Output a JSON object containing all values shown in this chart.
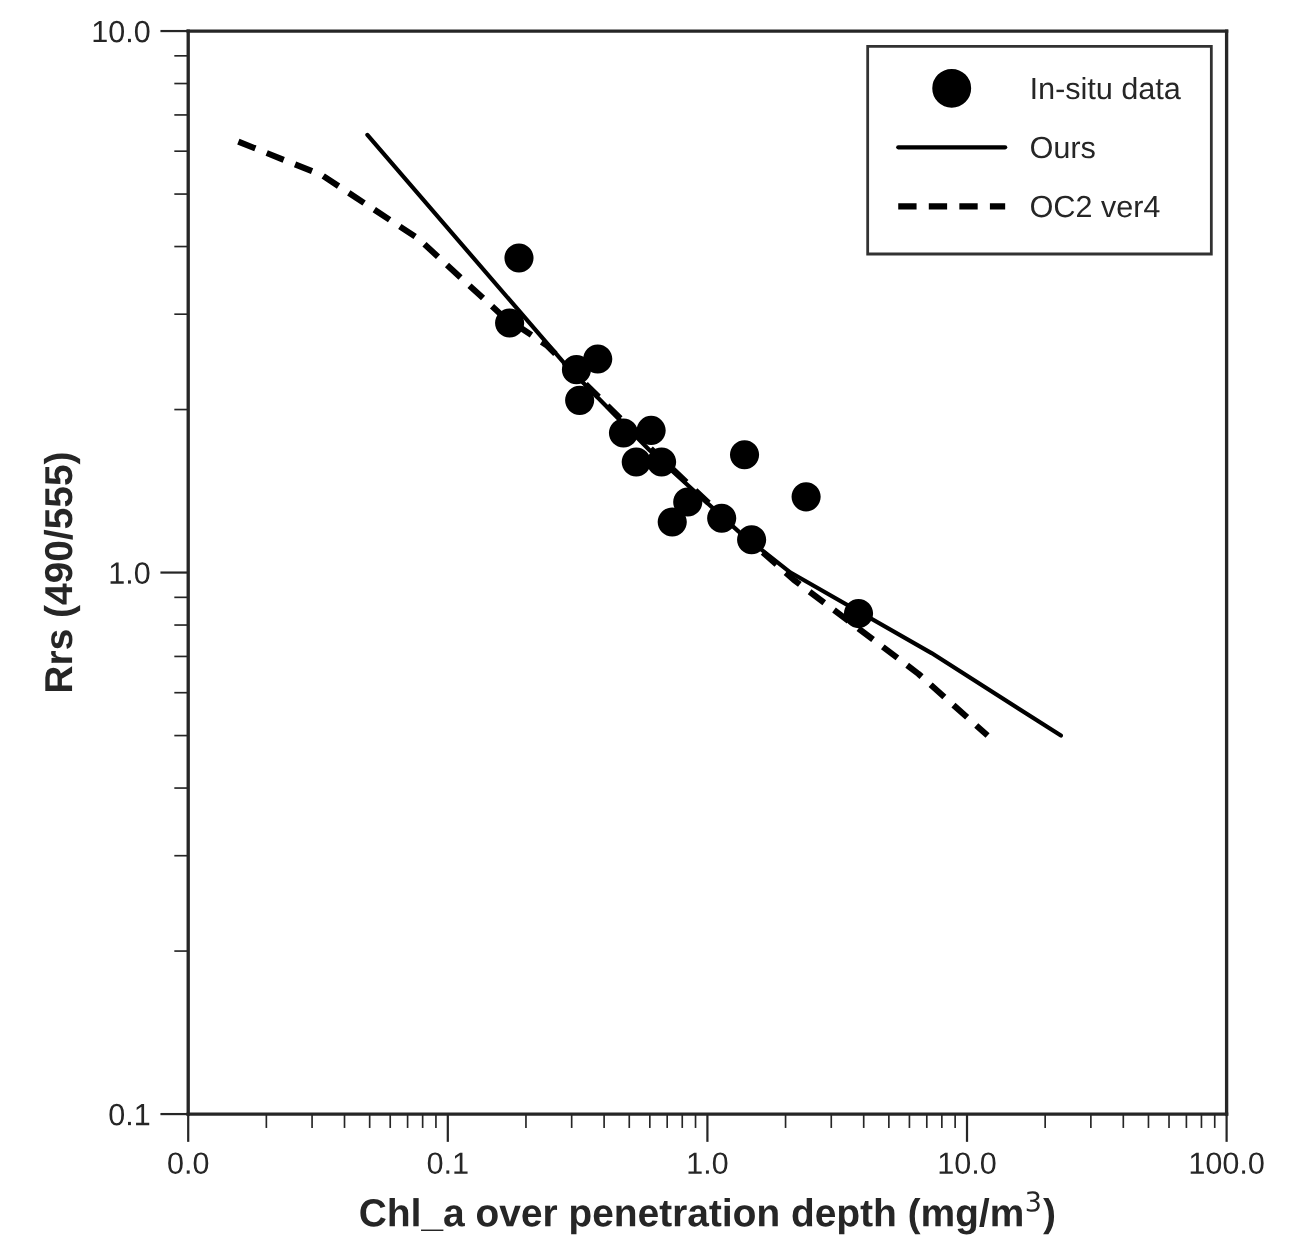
{
  "chart_data": {
    "type": "scatter",
    "xlabel": "Chl_a over penetration depth (mg/m$^{3}$)",
    "ylabel": "Rrs (490/555)",
    "log": "xy",
    "xlim": [
      0.01,
      100
    ],
    "ylim": [
      0.1,
      10
    ],
    "xticks": [
      {
        "value": 0.01,
        "label": "0.0"
      },
      {
        "value": 0.1,
        "label": "0.1"
      },
      {
        "value": 1,
        "label": "1.0"
      },
      {
        "value": 10,
        "label": "10.0"
      },
      {
        "value": 100,
        "label": "100.0"
      }
    ],
    "yticks": [
      {
        "value": 0.1,
        "label": "0.1"
      },
      {
        "value": 1,
        "label": "1.0"
      },
      {
        "value": 10,
        "label": "10.0"
      }
    ],
    "grid": false,
    "legend": "top right",
    "series": [
      {
        "name": "In-situ data",
        "marker": "circle",
        "color": "#000000",
        "x": [
          0.188,
          0.173,
          0.313,
          0.378,
          0.322,
          0.475,
          0.607,
          0.532,
          0.666,
          0.84,
          0.732,
          1.135,
          1.39,
          2.4,
          1.48,
          3.82
        ],
        "values": [
          3.81,
          2.89,
          2.37,
          2.48,
          2.08,
          1.81,
          1.83,
          1.6,
          1.6,
          1.35,
          1.24,
          1.26,
          1.65,
          1.38,
          1.15,
          0.84
        ]
      },
      {
        "name": "Ours",
        "type": "line",
        "line_style": "solid",
        "color": "#000000",
        "x": [
          0.049,
          0.284,
          0.6,
          1.32,
          2.09,
          7.3,
          23
        ],
        "values": [
          6.43,
          2.42,
          1.68,
          1.19,
          1.0,
          0.71,
          0.5
        ]
      },
      {
        "name": "OC2 ver4",
        "type": "line",
        "line_style": "dashed",
        "color": "#000000",
        "x": [
          0.0156,
          0.0327,
          0.0768,
          0.161,
          0.24,
          0.6,
          1.3,
          2.15,
          4.91,
          6.5,
          12
        ],
        "values": [
          6.25,
          5.42,
          4.14,
          2.99,
          2.63,
          1.7,
          1.2,
          0.97,
          0.72,
          0.65,
          0.5
        ]
      }
    ]
  }
}
